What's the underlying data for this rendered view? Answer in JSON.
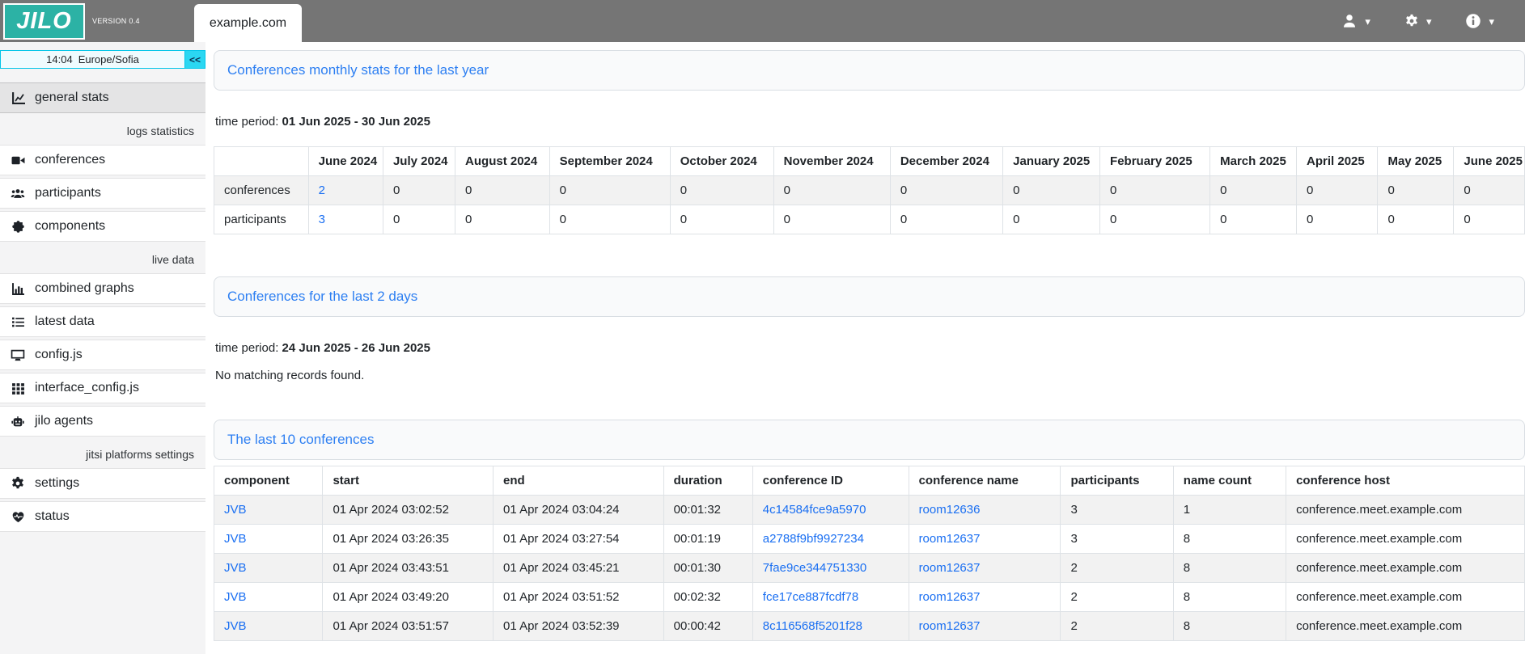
{
  "topbar": {
    "logo_text": "JILO",
    "version": "VERSION 0.4",
    "active_tab": "example.com",
    "menus": [
      {
        "name": "user-menu",
        "icon": "user-icon"
      },
      {
        "name": "settings-menu",
        "icon": "gear-icon"
      },
      {
        "name": "info-menu",
        "icon": "info-icon"
      }
    ]
  },
  "sidebar": {
    "clock": {
      "time": "14:04",
      "timezone": "Europe/Sofia"
    },
    "collapse_label": "<<",
    "menu": [
      {
        "type": "item",
        "icon": "chart-line-icon",
        "label": "general stats",
        "active": true
      },
      {
        "type": "label",
        "label": "logs statistics"
      },
      {
        "type": "item",
        "icon": "video-icon",
        "label": "conferences"
      },
      {
        "type": "item",
        "icon": "users-icon",
        "label": "participants"
      },
      {
        "type": "item",
        "icon": "puzzle-icon",
        "label": "components"
      },
      {
        "type": "label",
        "label": "live data"
      },
      {
        "type": "item",
        "icon": "bar-chart-icon",
        "label": "combined graphs"
      },
      {
        "type": "item",
        "icon": "list-icon",
        "label": "latest data"
      },
      {
        "type": "item",
        "icon": "desktop-icon",
        "label": "config.js"
      },
      {
        "type": "item",
        "icon": "grid-icon",
        "label": "interface_config.js"
      },
      {
        "type": "item",
        "icon": "robot-icon",
        "label": "jilo agents"
      },
      {
        "type": "label",
        "label": "jitsi platforms settings"
      },
      {
        "type": "item",
        "icon": "gear-icon",
        "label": "settings"
      },
      {
        "type": "item",
        "icon": "heart-pulse-icon",
        "label": "status"
      }
    ]
  },
  "sections": {
    "monthly": {
      "title": "Conferences monthly stats for the last year",
      "time_period_label": "time period:",
      "time_period": "01 Jun 2025 - 30 Jun 2025",
      "columns": [
        "",
        "June 2024",
        "July 2024",
        "August 2024",
        "September 2024",
        "October 2024",
        "November 2024",
        "December 2024",
        "January 2025",
        "February 2025",
        "March 2025",
        "April 2025",
        "May 2025",
        "June 2025"
      ],
      "rows": [
        {
          "label": "conferences",
          "values": [
            "2",
            "0",
            "0",
            "0",
            "0",
            "0",
            "0",
            "0",
            "0",
            "0",
            "0",
            "0",
            "0"
          ],
          "link_value_indexes": [
            0
          ]
        },
        {
          "label": "participants",
          "values": [
            "3",
            "0",
            "0",
            "0",
            "0",
            "0",
            "0",
            "0",
            "0",
            "0",
            "0",
            "0",
            "0"
          ],
          "link_value_indexes": [
            0
          ]
        }
      ]
    },
    "last2days": {
      "title": "Conferences for the last 2 days",
      "time_period_label": "time period:",
      "time_period": "24 Jun 2025 - 26 Jun 2025",
      "empty_message": "No matching records found."
    },
    "last10": {
      "title": "The last 10 conferences",
      "columns": [
        "component",
        "start",
        "end",
        "duration",
        "conference ID",
        "conference name",
        "participants",
        "name count",
        "conference host"
      ],
      "link_column_indexes": [
        0,
        4,
        5
      ],
      "rows": [
        [
          "JVB",
          "01 Apr 2024 03:02:52",
          "01 Apr 2024 03:04:24",
          "00:01:32",
          "4c14584fce9a5970",
          "room12636",
          "3",
          "1",
          "conference.meet.example.com"
        ],
        [
          "JVB",
          "01 Apr 2024 03:26:35",
          "01 Apr 2024 03:27:54",
          "00:01:19",
          "a2788f9bf9927234",
          "room12637",
          "3",
          "8",
          "conference.meet.example.com"
        ],
        [
          "JVB",
          "01 Apr 2024 03:43:51",
          "01 Apr 2024 03:45:21",
          "00:01:30",
          "7fae9ce344751330",
          "room12637",
          "2",
          "8",
          "conference.meet.example.com"
        ],
        [
          "JVB",
          "01 Apr 2024 03:49:20",
          "01 Apr 2024 03:51:52",
          "00:02:32",
          "fce17ce887fcdf78",
          "room12637",
          "2",
          "8",
          "conference.meet.example.com"
        ],
        [
          "JVB",
          "01 Apr 2024 03:51:57",
          "01 Apr 2024 03:52:39",
          "00:00:42",
          "8c116568f5201f28",
          "room12637",
          "2",
          "8",
          "conference.meet.example.com"
        ]
      ]
    }
  },
  "colors": {
    "brand_teal": "#2cb2a5",
    "topbar_grey": "#757575",
    "accent_cyan": "#2bd7f2",
    "title_blue": "#2d7ff2",
    "link_blue": "#1a6ff2"
  }
}
